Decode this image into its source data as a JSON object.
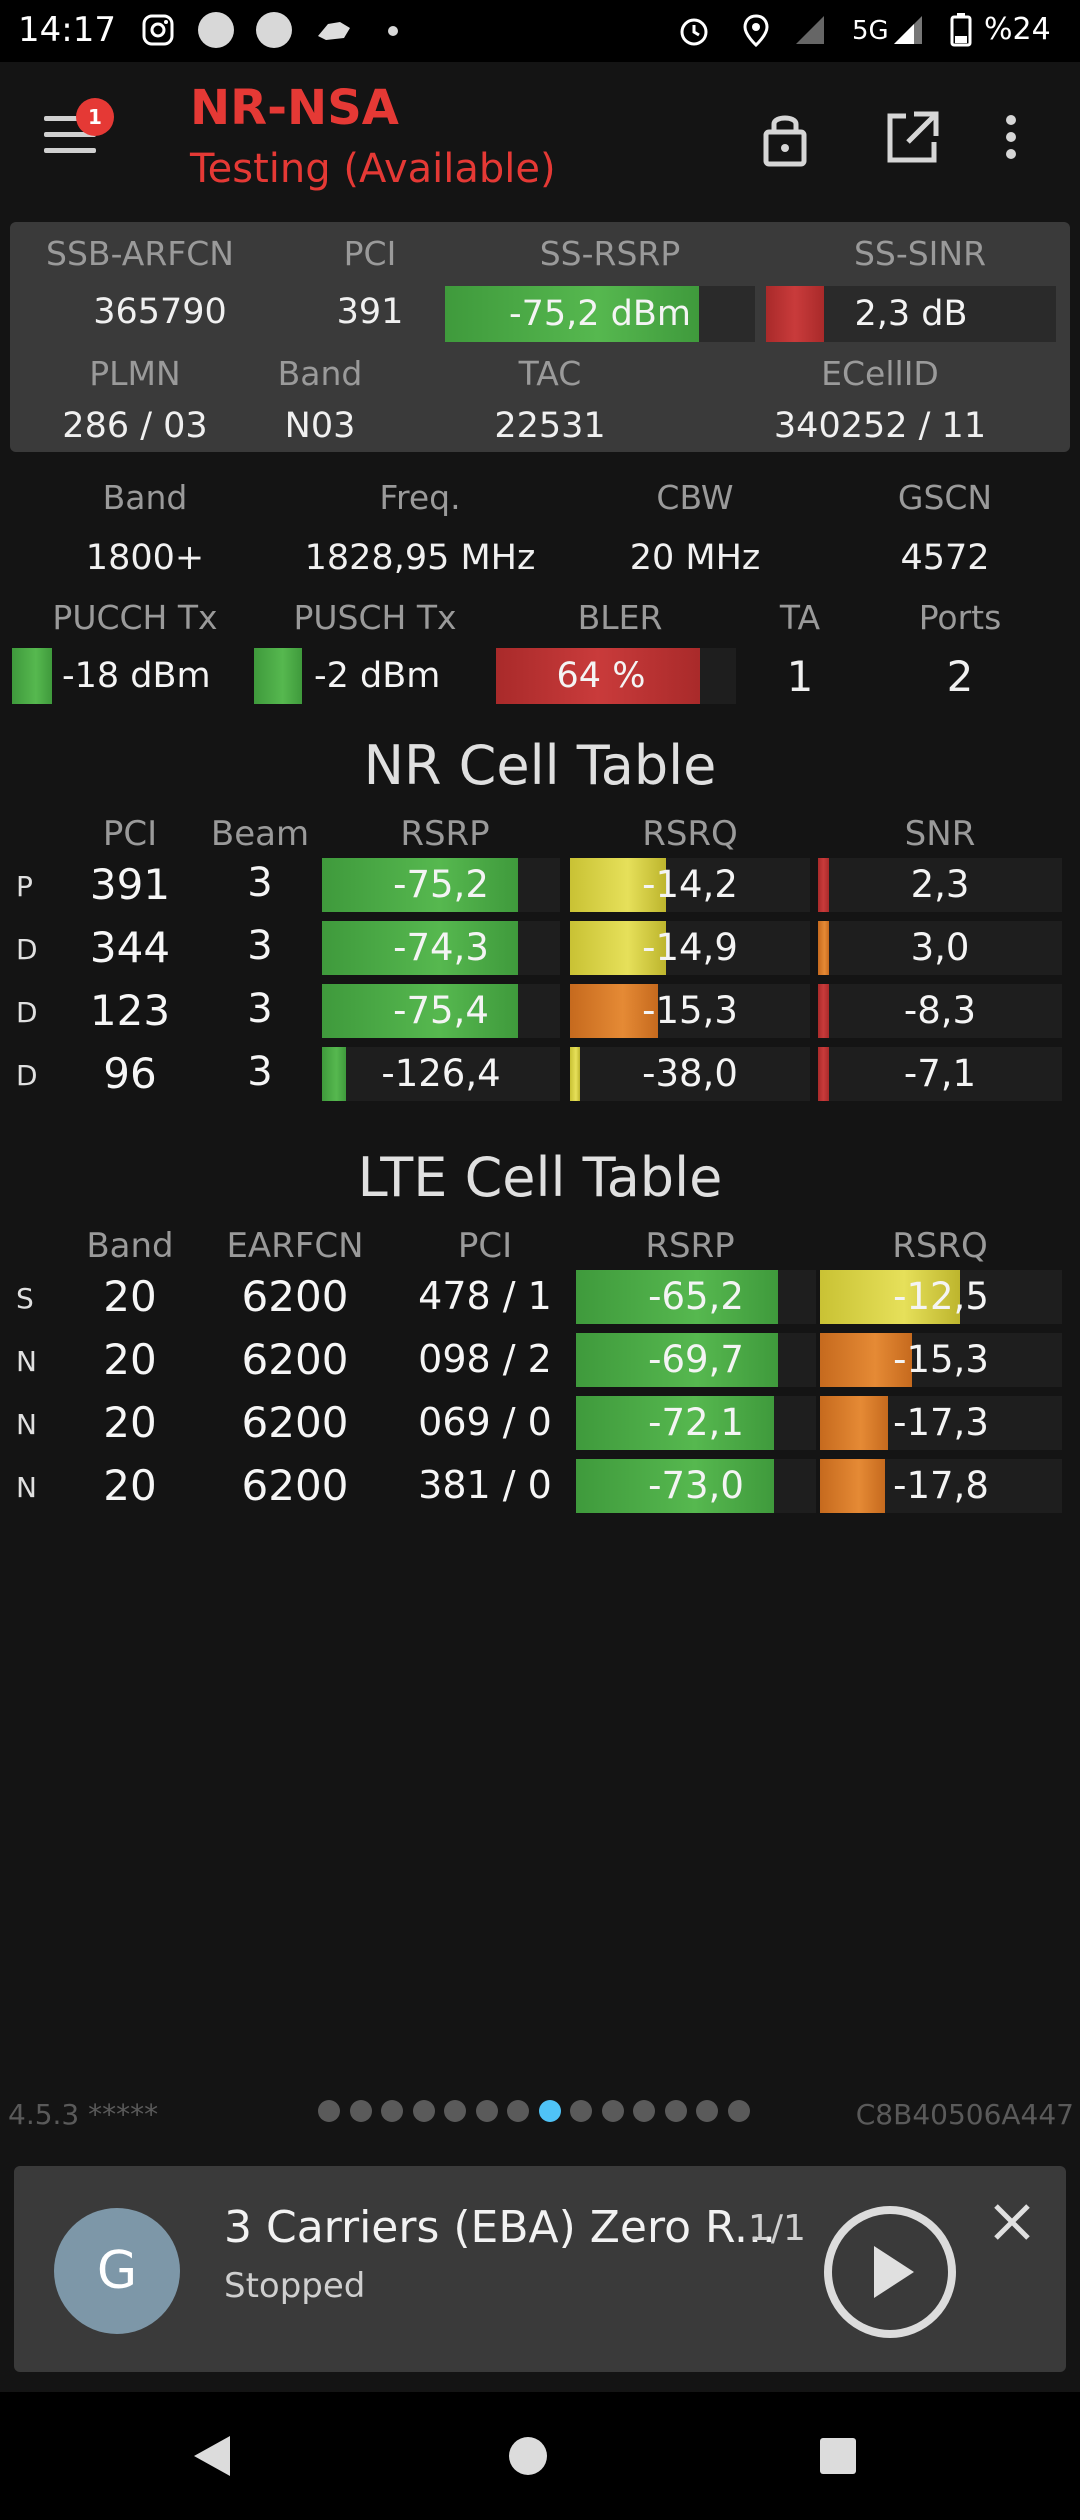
{
  "status_bar": {
    "time": "14:17",
    "network": "5G",
    "battery": "%24"
  },
  "app_bar": {
    "title": "NR-NSA",
    "subtitle": "Testing (Available)",
    "notification_count": "1"
  },
  "serving": {
    "ssb_arfcn_label": "SSB-ARFCN",
    "ssb_arfcn": "365790",
    "pci_label": "PCI",
    "pci": "391",
    "ss_rsrp_label": "SS-RSRP",
    "ss_rsrp": "-75,2 dBm",
    "ss_rsrp_level": 0.82,
    "ss_sinr_label": "SS-SINR",
    "ss_sinr": "2,3 dB",
    "ss_sinr_level": 0.2,
    "plmn_label": "PLMN",
    "plmn": "286 / 03",
    "band_label": "Band",
    "band": "N03",
    "tac_label": "TAC",
    "tac": "22531",
    "ecellid_label": "ECellID",
    "ecellid": "340252 / 11"
  },
  "info": {
    "band_label": "Band",
    "band": "1800+",
    "freq_label": "Freq.",
    "freq": "1828,95 MHz",
    "cbw_label": "CBW",
    "cbw": "20 MHz",
    "gscn_label": "GSCN",
    "gscn": "4572",
    "pucch_label": "PUCCH Tx",
    "pucch": "-18 dBm",
    "pucch_level": 0.3,
    "pusch_label": "PUSCH Tx",
    "pusch": "-2 dBm",
    "pusch_level": 0.3,
    "bler_label": "BLER",
    "bler": "64 %",
    "bler_level": 0.85,
    "ta_label": "TA",
    "ta": "1",
    "ports_label": "Ports",
    "ports": "2"
  },
  "nr_table": {
    "title": "NR Cell Table",
    "headers": [
      "PCI",
      "Beam",
      "RSRP",
      "RSRQ",
      "SNR"
    ],
    "rows": [
      {
        "tag": "P",
        "pci": "391",
        "beam": "3",
        "rsrp": "-75,2",
        "rsrp_level": 0.98,
        "rsrq": "-14,2",
        "rsrq_level": 0.5,
        "snr": "2,3",
        "snr_level": 0.18
      },
      {
        "tag": "D",
        "pci": "344",
        "beam": "3",
        "rsrp": "-74,3",
        "rsrp_level": 0.98,
        "rsrq": "-14,9",
        "rsrq_level": 0.5,
        "snr": "3,0",
        "snr_level": 0.18
      },
      {
        "tag": "D",
        "pci": "123",
        "beam": "3",
        "rsrp": "-75,4",
        "rsrp_level": 0.98,
        "rsrq": "-15,3",
        "rsrq_level": 0.46,
        "snr": "-8,3",
        "snr_level": 0.18
      },
      {
        "tag": "D",
        "pci": "96",
        "beam": "3",
        "rsrp": "-126,4",
        "rsrp_level": 0.12,
        "rsrq": "-38,0",
        "rsrq_level": 0.05,
        "snr": "-7,1",
        "snr_level": 0.18
      }
    ]
  },
  "lte_table": {
    "title": "LTE Cell Table",
    "headers": [
      "Band",
      "EARFCN",
      "PCI",
      "RSRP",
      "RSRQ"
    ],
    "rows": [
      {
        "tag": "S",
        "band": "20",
        "earfcn": "6200",
        "pci": "478 / 1",
        "rsrp": "-65,2",
        "rsrp_level": 0.98,
        "rsrq": "-12,5",
        "rsrq_level": 0.58
      },
      {
        "tag": "N",
        "band": "20",
        "earfcn": "6200",
        "pci": "098 / 2",
        "rsrp": "-69,7",
        "rsrp_level": 0.98,
        "rsrq": "-15,3",
        "rsrq_level": 0.38
      },
      {
        "tag": "N",
        "band": "20",
        "earfcn": "6200",
        "pci": "069 / 0",
        "rsrp": "-72,1",
        "rsrp_level": 0.96,
        "rsrq": "-17,3",
        "rsrq_level": 0.28
      },
      {
        "tag": "N",
        "band": "20",
        "earfcn": "6200",
        "pci": "381 / 0",
        "rsrp": "-73,0",
        "rsrp_level": 0.96,
        "rsrq": "-17,8",
        "rsrq_level": 0.27
      }
    ]
  },
  "footer": {
    "version": "4.5.3 *****",
    "device_id": "C8B40506A447",
    "page_count": 14,
    "active_page": 8
  },
  "media": {
    "avatar_letter": "G",
    "title": "3 Carriers (EBA) Zero R...",
    "count": "1/1",
    "state": "Stopped"
  },
  "colors": {
    "accent": "#e53935",
    "good": "#4caf50",
    "fair": "#d8d33f",
    "warn": "#e0822f",
    "bad": "#c03535",
    "active_dot": "#4fc3f7"
  }
}
